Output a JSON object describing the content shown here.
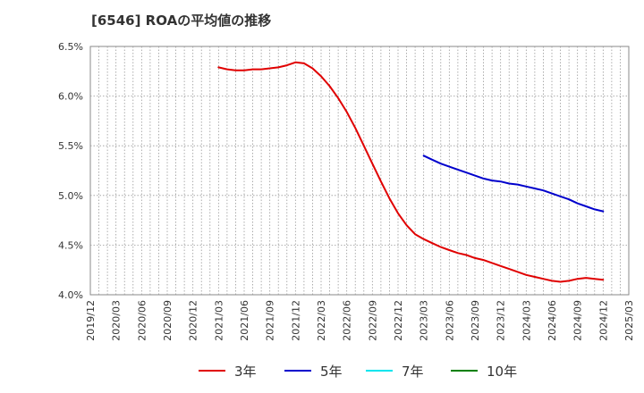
{
  "chart_data": {
    "type": "line",
    "title": "[6546]  ROAの平均値の推移",
    "xlabel": "",
    "ylabel": "",
    "ylim": [
      4.0,
      6.5
    ],
    "yticks": [
      "4.0%",
      "4.5%",
      "5.0%",
      "5.5%",
      "6.0%",
      "6.5%"
    ],
    "ytick_values": [
      4.0,
      4.5,
      5.0,
      5.5,
      6.0,
      6.5
    ],
    "xticks": [
      "2019/12",
      "2020/03",
      "2020/06",
      "2020/09",
      "2020/12",
      "2021/03",
      "2021/06",
      "2021/09",
      "2021/12",
      "2022/03",
      "2022/06",
      "2022/09",
      "2022/12",
      "2023/03",
      "2023/06",
      "2023/09",
      "2023/12",
      "2024/03",
      "2024/06",
      "2024/09",
      "2024/12",
      "2025/03"
    ],
    "grid": true,
    "legend_position": "bottom",
    "series": [
      {
        "name": "3年",
        "color": "#e00000",
        "points": [
          [
            "2021/03",
            6.29
          ],
          [
            "2021/04",
            6.27
          ],
          [
            "2021/05",
            6.26
          ],
          [
            "2021/06",
            6.26
          ],
          [
            "2021/07",
            6.27
          ],
          [
            "2021/08",
            6.27
          ],
          [
            "2021/09",
            6.28
          ],
          [
            "2021/10",
            6.29
          ],
          [
            "2021/11",
            6.31
          ],
          [
            "2021/12",
            6.34
          ],
          [
            "2022/01",
            6.33
          ],
          [
            "2022/02",
            6.28
          ],
          [
            "2022/03",
            6.2
          ],
          [
            "2022/04",
            6.1
          ],
          [
            "2022/05",
            5.98
          ],
          [
            "2022/06",
            5.84
          ],
          [
            "2022/07",
            5.68
          ],
          [
            "2022/08",
            5.5
          ],
          [
            "2022/09",
            5.32
          ],
          [
            "2022/10",
            5.14
          ],
          [
            "2022/11",
            4.97
          ],
          [
            "2022/12",
            4.82
          ],
          [
            "2023/01",
            4.7
          ],
          [
            "2023/02",
            4.61
          ],
          [
            "2023/03",
            4.56
          ],
          [
            "2023/04",
            4.52
          ],
          [
            "2023/05",
            4.48
          ],
          [
            "2023/06",
            4.45
          ],
          [
            "2023/07",
            4.42
          ],
          [
            "2023/08",
            4.4
          ],
          [
            "2023/09",
            4.37
          ],
          [
            "2023/10",
            4.35
          ],
          [
            "2023/11",
            4.32
          ],
          [
            "2023/12",
            4.29
          ],
          [
            "2024/01",
            4.26
          ],
          [
            "2024/02",
            4.23
          ],
          [
            "2024/03",
            4.2
          ],
          [
            "2024/04",
            4.18
          ],
          [
            "2024/05",
            4.16
          ],
          [
            "2024/06",
            4.14
          ],
          [
            "2024/07",
            4.13
          ],
          [
            "2024/08",
            4.14
          ],
          [
            "2024/09",
            4.16
          ],
          [
            "2024/10",
            4.17
          ],
          [
            "2024/11",
            4.16
          ],
          [
            "2024/12",
            4.15
          ]
        ]
      },
      {
        "name": "5年",
        "color": "#0000cc",
        "points": [
          [
            "2023/03",
            5.4
          ],
          [
            "2023/04",
            5.36
          ],
          [
            "2023/05",
            5.32
          ],
          [
            "2023/06",
            5.29
          ],
          [
            "2023/07",
            5.26
          ],
          [
            "2023/08",
            5.23
          ],
          [
            "2023/09",
            5.2
          ],
          [
            "2023/10",
            5.17
          ],
          [
            "2023/11",
            5.15
          ],
          [
            "2023/12",
            5.14
          ],
          [
            "2024/01",
            5.12
          ],
          [
            "2024/02",
            5.11
          ],
          [
            "2024/03",
            5.09
          ],
          [
            "2024/04",
            5.07
          ],
          [
            "2024/05",
            5.05
          ],
          [
            "2024/06",
            5.02
          ],
          [
            "2024/07",
            4.99
          ],
          [
            "2024/08",
            4.96
          ],
          [
            "2024/09",
            4.92
          ],
          [
            "2024/10",
            4.89
          ],
          [
            "2024/11",
            4.86
          ],
          [
            "2024/12",
            4.84
          ]
        ]
      },
      {
        "name": "7年",
        "color": "#00e5ee",
        "points": []
      },
      {
        "name": "10年",
        "color": "#008000",
        "points": []
      }
    ]
  }
}
